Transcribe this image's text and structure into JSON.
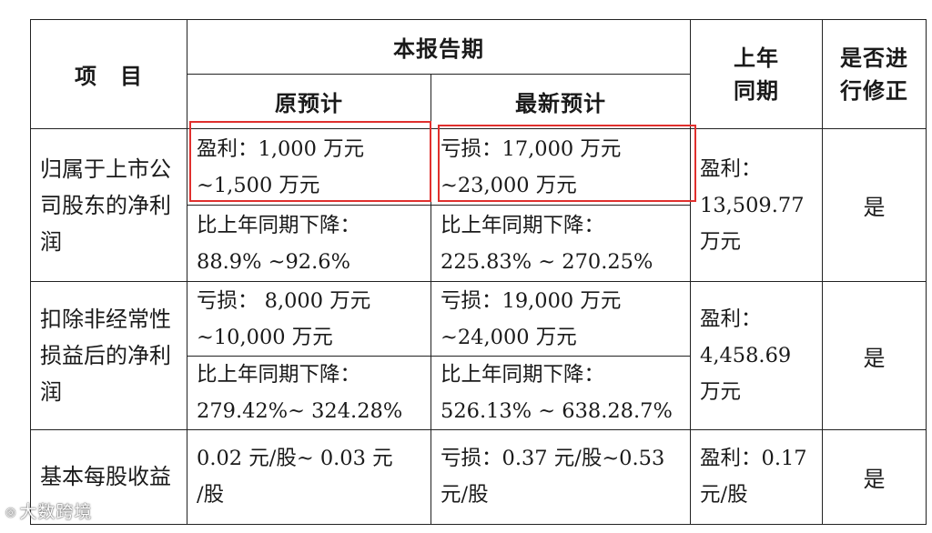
{
  "headers": {
    "item": "项　目",
    "current_period": "本报告期",
    "original_forecast": "原预计",
    "latest_forecast": "最新预计",
    "last_year": "上年\n同期",
    "revised": "是否进\n行修正"
  },
  "rows": [
    {
      "label": "归属于上市公司股东的净利润",
      "original_top": "盈利：1,000 万元\n~1,500 万元",
      "latest_top": "亏损：17,000 万元\n~23,000 万元",
      "original_bottom": "比上年同期下降：\n88.9% ~92.6%",
      "latest_bottom": "比上年同期下降：\n225.83% ~ 270.25%",
      "last_year": "盈利：\n13,509.77\n万元",
      "revised": "是"
    },
    {
      "label": "扣除非经常性损益后的净利润",
      "original_top": "亏损： 8,000 万元\n~10,000 万元",
      "latest_top": "亏损：19,000 万元\n~24,000 万元",
      "original_bottom": "比上年同期下降：\n279.42%~ 324.28%",
      "latest_bottom": "比上年同期下降：\n526.13% ~ 638.28.7%",
      "last_year": "盈利：\n4,458.69\n万元",
      "revised": "是"
    },
    {
      "label": "基本每股收益",
      "original": "0.02 元/股~ 0.03 元\n/股",
      "latest": "亏损：0.37 元/股~0.53\n元/股",
      "last_year": "盈利：0.17\n元/股",
      "revised": "是"
    }
  ],
  "watermark": "大数跨境",
  "highlight_color": "#e0302e"
}
